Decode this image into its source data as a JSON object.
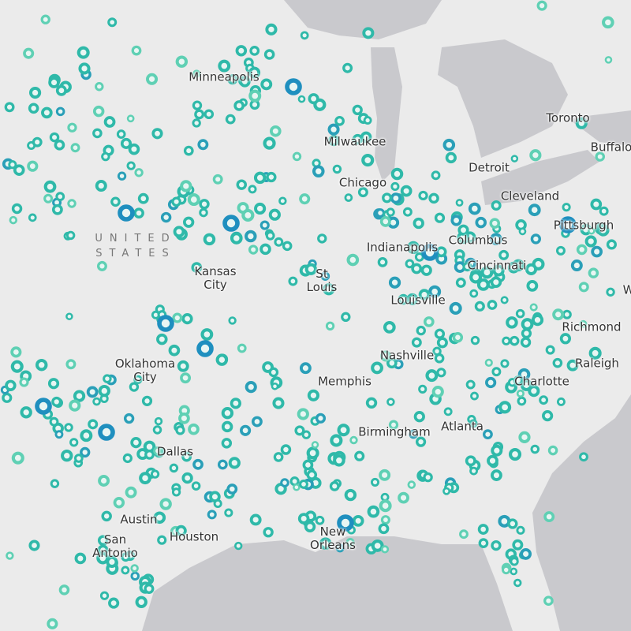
{
  "map": {
    "country_label": "UNITED STATES",
    "labels": [
      "Minneapolis",
      "Milwaukee",
      "Toronto",
      "Buffalo",
      "Detroit",
      "Chicago",
      "Cleveland",
      "Pittsburgh",
      "Kansas City",
      "St Louis",
      "Indianapolis",
      "Columbus",
      "Cincinnati",
      "Louisville",
      "Richmond",
      "Nashville",
      "Oklahoma City",
      "Raleigh",
      "Memphis",
      "Charlotte",
      "Atlanta",
      "Birmingham",
      "Dallas",
      "Austin",
      "San Antonio",
      "Houston",
      "New Orleans",
      "W"
    ]
  }
}
